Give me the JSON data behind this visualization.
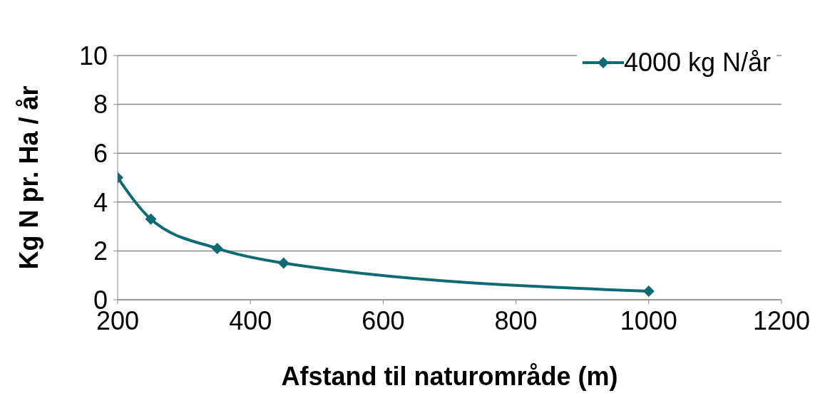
{
  "chart_data": {
    "type": "line",
    "xlabel": "Afstand til naturområde (m)",
    "ylabel": "Kg N pr. Ha / år",
    "x": [
      200,
      250,
      350,
      450,
      1000
    ],
    "series": [
      {
        "name": "4000 kg N/år",
        "color": "#0e6b73",
        "values": [
          5,
          3.3,
          2.1,
          1.5,
          0.35
        ]
      }
    ],
    "xlim": [
      200,
      1200
    ],
    "xticks": [
      200,
      400,
      600,
      800,
      1000,
      1200
    ],
    "ylim": [
      0,
      10
    ],
    "yticks": [
      0,
      2,
      4,
      6,
      8,
      10
    ],
    "grid": "y",
    "legend": "top right",
    "marker": "diamond",
    "line_style": "solid"
  }
}
